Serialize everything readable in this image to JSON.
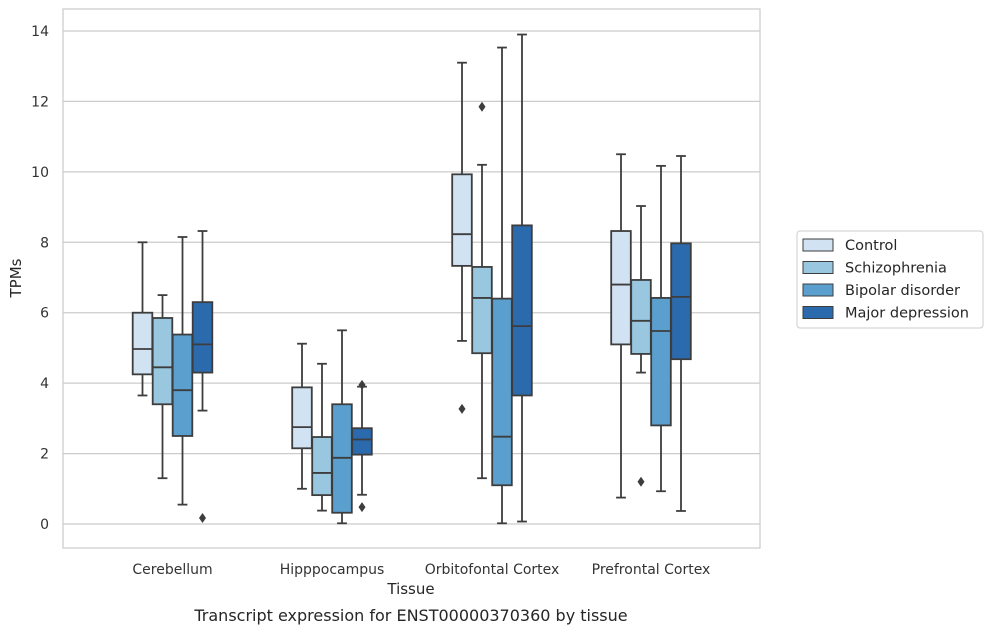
{
  "chart_data": {
    "type": "box",
    "title": "",
    "caption": "Transcript expression for ENST00000370360 by tissue",
    "xlabel": "Tissue",
    "ylabel": "TPMs",
    "ylim": [
      -0.65,
      14.6
    ],
    "yticks": [
      0,
      2,
      4,
      6,
      8,
      10,
      12,
      14
    ],
    "grid": "horizontal",
    "legend_position": "right",
    "categories": [
      "Cerebellum",
      "Hipppocampus",
      "Orbitofontal Cortex",
      "Prefrontal Cortex"
    ],
    "series": [
      {
        "name": "Control",
        "color": "#d1e2f2",
        "boxes": [
          {
            "whislo": 3.65,
            "q1": 4.25,
            "med": 4.97,
            "q3": 6.0,
            "whishi": 8.0,
            "fliers": []
          },
          {
            "whislo": 1.0,
            "q1": 2.15,
            "med": 2.75,
            "q3": 3.88,
            "whishi": 5.12,
            "fliers": []
          },
          {
            "whislo": 5.2,
            "q1": 7.33,
            "med": 8.23,
            "q3": 9.93,
            "whishi": 13.1,
            "fliers": [
              3.27
            ]
          },
          {
            "whislo": 0.75,
            "q1": 5.1,
            "med": 6.8,
            "q3": 8.32,
            "whishi": 10.5,
            "fliers": []
          }
        ]
      },
      {
        "name": "Schizophrenia",
        "color": "#9ac7e0",
        "boxes": [
          {
            "whislo": 1.3,
            "q1": 3.4,
            "med": 4.45,
            "q3": 5.85,
            "whishi": 6.5,
            "fliers": []
          },
          {
            "whislo": 0.38,
            "q1": 0.82,
            "med": 1.45,
            "q3": 2.47,
            "whishi": 4.55,
            "fliers": []
          },
          {
            "whislo": 1.3,
            "q1": 4.85,
            "med": 6.42,
            "q3": 7.3,
            "whishi": 10.2,
            "fliers": [
              11.85
            ]
          },
          {
            "whislo": 4.3,
            "q1": 4.83,
            "med": 5.77,
            "q3": 6.93,
            "whishi": 9.03,
            "fliers": [
              1.2
            ]
          }
        ]
      },
      {
        "name": "Bipolar disorder",
        "color": "#5b9fcf",
        "boxes": [
          {
            "whislo": 0.55,
            "q1": 2.5,
            "med": 3.8,
            "q3": 5.38,
            "whishi": 8.15,
            "fliers": []
          },
          {
            "whislo": 0.02,
            "q1": 0.32,
            "med": 1.88,
            "q3": 3.4,
            "whishi": 5.5,
            "fliers": []
          },
          {
            "whislo": 0.02,
            "q1": 1.1,
            "med": 2.48,
            "q3": 6.4,
            "whishi": 13.53,
            "fliers": []
          },
          {
            "whislo": 0.93,
            "q1": 2.8,
            "med": 5.48,
            "q3": 6.42,
            "whishi": 10.17,
            "fliers": []
          }
        ]
      },
      {
        "name": "Major depression",
        "color": "#2b6aad",
        "boxes": [
          {
            "whislo": 3.22,
            "q1": 4.3,
            "med": 5.1,
            "q3": 6.3,
            "whishi": 8.32,
            "fliers": [
              0.17
            ]
          },
          {
            "whislo": 0.83,
            "q1": 1.97,
            "med": 2.4,
            "q3": 2.72,
            "whishi": 3.9,
            "fliers": [
              3.95,
              0.48
            ]
          },
          {
            "whislo": 0.07,
            "q1": 3.65,
            "med": 5.62,
            "q3": 8.48,
            "whishi": 13.9,
            "fliers": []
          },
          {
            "whislo": 0.37,
            "q1": 4.68,
            "med": 6.45,
            "q3": 7.97,
            "whishi": 10.45,
            "fliers": []
          }
        ]
      }
    ]
  }
}
